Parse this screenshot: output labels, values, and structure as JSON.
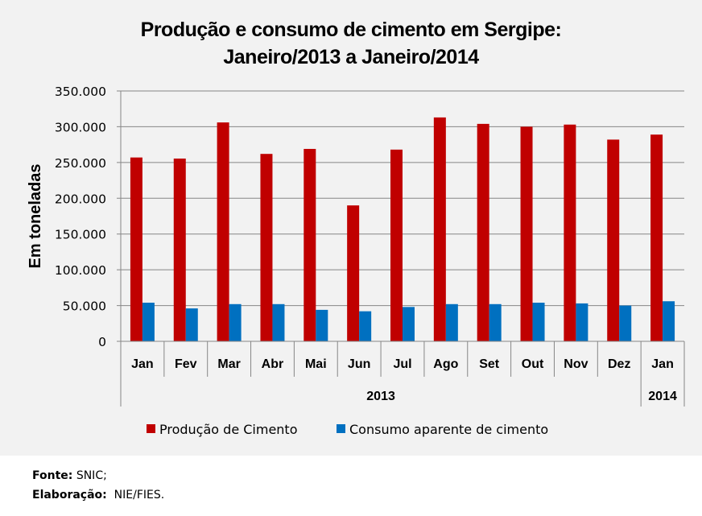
{
  "chart_data": {
    "type": "bar",
    "title_line1": "Produção e consumo de cimento em Sergipe:",
    "title_line2": "Janeiro/2013 a Janeiro/2014",
    "xlabel": "",
    "ylabel": "Em toneladas",
    "ylim": [
      0,
      350000
    ],
    "yticks": [
      0,
      50000,
      100000,
      150000,
      200000,
      250000,
      300000,
      350000
    ],
    "ytick_labels": [
      "0",
      "50.000",
      "100.000",
      "150.000",
      "200.000",
      "250.000",
      "300.000",
      "350.000"
    ],
    "grid": true,
    "categories": [
      "Jan",
      "Fev",
      "Mar",
      "Abr",
      "Mai",
      "Jun",
      "Jul",
      "Ago",
      "Set",
      "Out",
      "Nov",
      "Dez",
      "Jan"
    ],
    "groups": [
      {
        "label": "2013",
        "count": 12
      },
      {
        "label": "2014",
        "count": 1
      }
    ],
    "series": [
      {
        "name": "Produção de Cimento",
        "color": "#c00000",
        "values": [
          257000,
          255500,
          306000,
          262000,
          269000,
          190000,
          268000,
          313000,
          304000,
          300000,
          303000,
          282000,
          289000
        ]
      },
      {
        "name": "Consumo aparente de cimento",
        "color": "#0070c0",
        "values": [
          54000,
          46000,
          52000,
          52000,
          44000,
          42000,
          48000,
          52000,
          52000,
          54000,
          53000,
          50000,
          56000
        ]
      }
    ],
    "legend_position": "bottom"
  },
  "footer": {
    "source_label": "Fonte:",
    "source_value": " SNIC;",
    "credit_label": "Elaboração:",
    "credit_value": "  NIE/FIES."
  }
}
